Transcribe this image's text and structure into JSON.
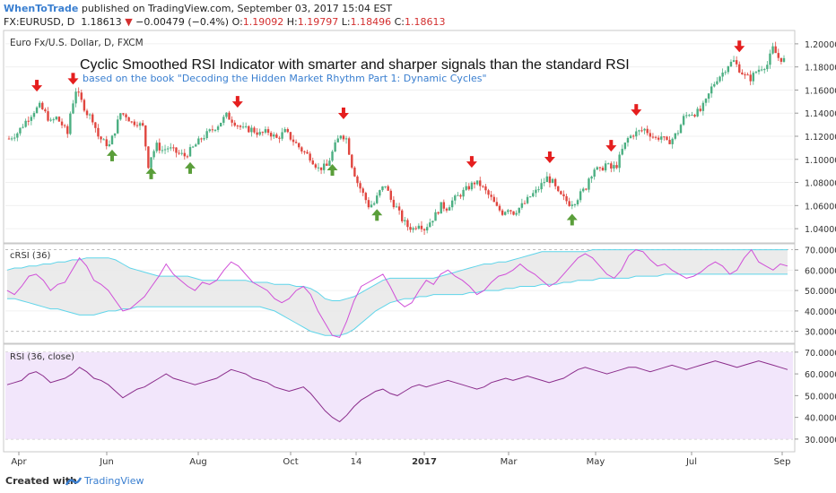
{
  "header": {
    "brand": "WhenToTrade",
    "published_text": "published on TradingView.com, September 03, 2017 15:04 EST",
    "symbol": "FX:EURUSD, D",
    "last": "1.18613",
    "change": "−0.00479 (−0.4%)",
    "o_label": "O:",
    "o_value": "1.19092",
    "h_label": "H:",
    "h_value": "1.19797",
    "l_label": "L:",
    "l_value": "1.18496",
    "c_label": "C:",
    "c_value": "1.18613",
    "down_color": "#d32f2f"
  },
  "footer": {
    "created_with": "Created with",
    "platform": "TradingView"
  },
  "chart_data": [
    {
      "type": "candlestick",
      "instrument": "Euro Fx/U.S. Dollar, D, FXCM",
      "title": "Cyclic Smoothed RSI Indicator with smarter and sharper signals than the standard RSI",
      "subtitle": "based on the book \"Decoding the Hidden Market Rhythm Part 1: Dynamic Cycles\"",
      "x_ticks": [
        "Apr",
        "Jun",
        "Aug",
        "Oct",
        "14",
        "2017",
        "Mar",
        "May",
        "Jul",
        "Sep"
      ],
      "ylim": [
        1.03,
        1.21
      ],
      "y_ticks": [
        "1.04000",
        "1.06000",
        "1.08000",
        "1.10000",
        "1.12000",
        "1.14000",
        "1.16000",
        "1.18000",
        "1.20000"
      ],
      "price_path": [
        {
          "x": 0,
          "y": 1.118
        },
        {
          "x": 3,
          "y": 1.123
        },
        {
          "x": 6,
          "y": 1.133
        },
        {
          "x": 9,
          "y": 1.142
        },
        {
          "x": 11,
          "y": 1.146
        },
        {
          "x": 13,
          "y": 1.14
        },
        {
          "x": 15,
          "y": 1.132
        },
        {
          "x": 17,
          "y": 1.136
        },
        {
          "x": 19,
          "y": 1.13
        },
        {
          "x": 21,
          "y": 1.122
        },
        {
          "x": 22,
          "y": 1.14
        },
        {
          "x": 24,
          "y": 1.16
        },
        {
          "x": 26,
          "y": 1.15
        },
        {
          "x": 28,
          "y": 1.14
        },
        {
          "x": 30,
          "y": 1.135
        },
        {
          "x": 32,
          "y": 1.12
        },
        {
          "x": 34,
          "y": 1.115
        },
        {
          "x": 36,
          "y": 1.112
        },
        {
          "x": 38,
          "y": 1.125
        },
        {
          "x": 40,
          "y": 1.14
        },
        {
          "x": 42,
          "y": 1.138
        },
        {
          "x": 44,
          "y": 1.132
        },
        {
          "x": 46,
          "y": 1.132
        },
        {
          "x": 48,
          "y": 1.128
        },
        {
          "x": 49,
          "y": 1.112
        },
        {
          "x": 50,
          "y": 1.095
        },
        {
          "x": 51,
          "y": 1.103
        },
        {
          "x": 53,
          "y": 1.112
        },
        {
          "x": 55,
          "y": 1.108
        },
        {
          "x": 57,
          "y": 1.11
        },
        {
          "x": 60,
          "y": 1.106
        },
        {
          "x": 63,
          "y": 1.103
        },
        {
          "x": 66,
          "y": 1.11
        },
        {
          "x": 69,
          "y": 1.118
        },
        {
          "x": 72,
          "y": 1.124
        },
        {
          "x": 75,
          "y": 1.13
        },
        {
          "x": 78,
          "y": 1.138
        },
        {
          "x": 81,
          "y": 1.132
        },
        {
          "x": 84,
          "y": 1.126
        },
        {
          "x": 87,
          "y": 1.126
        },
        {
          "x": 90,
          "y": 1.122
        },
        {
          "x": 93,
          "y": 1.124
        },
        {
          "x": 96,
          "y": 1.118
        },
        {
          "x": 99,
          "y": 1.124
        },
        {
          "x": 102,
          "y": 1.116
        },
        {
          "x": 105,
          "y": 1.108
        },
        {
          "x": 108,
          "y": 1.102
        },
        {
          "x": 111,
          "y": 1.092
        },
        {
          "x": 114,
          "y": 1.094
        },
        {
          "x": 117,
          "y": 1.112
        },
        {
          "x": 119,
          "y": 1.122
        },
        {
          "x": 121,
          "y": 1.118
        },
        {
          "x": 123,
          "y": 1.095
        },
        {
          "x": 125,
          "y": 1.08
        },
        {
          "x": 127,
          "y": 1.07
        },
        {
          "x": 129,
          "y": 1.06
        },
        {
          "x": 131,
          "y": 1.062
        },
        {
          "x": 133,
          "y": 1.072
        },
        {
          "x": 135,
          "y": 1.078
        },
        {
          "x": 137,
          "y": 1.065
        },
        {
          "x": 139,
          "y": 1.058
        },
        {
          "x": 141,
          "y": 1.048
        },
        {
          "x": 143,
          "y": 1.042
        },
        {
          "x": 145,
          "y": 1.04
        },
        {
          "x": 147,
          "y": 1.045
        },
        {
          "x": 149,
          "y": 1.04
        },
        {
          "x": 151,
          "y": 1.046
        },
        {
          "x": 153,
          "y": 1.052
        },
        {
          "x": 155,
          "y": 1.06
        },
        {
          "x": 157,
          "y": 1.058
        },
        {
          "x": 159,
          "y": 1.064
        },
        {
          "x": 161,
          "y": 1.068
        },
        {
          "x": 163,
          "y": 1.072
        },
        {
          "x": 165,
          "y": 1.076
        },
        {
          "x": 167,
          "y": 1.08
        },
        {
          "x": 169,
          "y": 1.078
        },
        {
          "x": 171,
          "y": 1.072
        },
        {
          "x": 173,
          "y": 1.066
        },
        {
          "x": 175,
          "y": 1.058
        },
        {
          "x": 177,
          "y": 1.054
        },
        {
          "x": 179,
          "y": 1.058
        },
        {
          "x": 181,
          "y": 1.054
        },
        {
          "x": 183,
          "y": 1.058
        },
        {
          "x": 185,
          "y": 1.062
        },
        {
          "x": 187,
          "y": 1.068
        },
        {
          "x": 189,
          "y": 1.072
        },
        {
          "x": 191,
          "y": 1.078
        },
        {
          "x": 193,
          "y": 1.084
        },
        {
          "x": 195,
          "y": 1.08
        },
        {
          "x": 197,
          "y": 1.07
        },
        {
          "x": 199,
          "y": 1.066
        },
        {
          "x": 201,
          "y": 1.062
        },
        {
          "x": 203,
          "y": 1.064
        },
        {
          "x": 205,
          "y": 1.07
        },
        {
          "x": 207,
          "y": 1.076
        },
        {
          "x": 208,
          "y": 1.084
        },
        {
          "x": 210,
          "y": 1.092
        },
        {
          "x": 212,
          "y": 1.09
        },
        {
          "x": 214,
          "y": 1.096
        },
        {
          "x": 216,
          "y": 1.092
        },
        {
          "x": 218,
          "y": 1.095
        },
        {
          "x": 220,
          "y": 1.108
        },
        {
          "x": 222,
          "y": 1.118
        },
        {
          "x": 224,
          "y": 1.122
        },
        {
          "x": 226,
          "y": 1.124
        },
        {
          "x": 228,
          "y": 1.126
        },
        {
          "x": 230,
          "y": 1.122
        },
        {
          "x": 232,
          "y": 1.118
        },
        {
          "x": 234,
          "y": 1.12
        },
        {
          "x": 236,
          "y": 1.114
        },
        {
          "x": 238,
          "y": 1.118
        },
        {
          "x": 240,
          "y": 1.124
        },
        {
          "x": 242,
          "y": 1.136
        },
        {
          "x": 244,
          "y": 1.14
        },
        {
          "x": 246,
          "y": 1.14
        },
        {
          "x": 248,
          "y": 1.142
        },
        {
          "x": 250,
          "y": 1.15
        },
        {
          "x": 252,
          "y": 1.162
        },
        {
          "x": 254,
          "y": 1.17
        },
        {
          "x": 256,
          "y": 1.175
        },
        {
          "x": 258,
          "y": 1.182
        },
        {
          "x": 260,
          "y": 1.185
        },
        {
          "x": 262,
          "y": 1.178
        },
        {
          "x": 264,
          "y": 1.172
        },
        {
          "x": 266,
          "y": 1.17
        },
        {
          "x": 268,
          "y": 1.176
        },
        {
          "x": 270,
          "y": 1.18
        },
        {
          "x": 272,
          "y": 1.182
        },
        {
          "x": 274,
          "y": 1.196
        },
        {
          "x": 276,
          "y": 1.188
        },
        {
          "x": 278,
          "y": 1.186
        }
      ],
      "markers": [
        {
          "type": "sell",
          "x": 10
        },
        {
          "type": "sell",
          "x": 23
        },
        {
          "type": "buy",
          "x": 37
        },
        {
          "type": "buy",
          "x": 51
        },
        {
          "type": "buy",
          "x": 65
        },
        {
          "type": "sell",
          "x": 82
        },
        {
          "type": "sell",
          "x": 120
        },
        {
          "type": "buy",
          "x": 116
        },
        {
          "type": "buy",
          "x": 132
        },
        {
          "type": "sell",
          "x": 166
        },
        {
          "type": "sell",
          "x": 194
        },
        {
          "type": "buy",
          "x": 202
        },
        {
          "type": "sell",
          "x": 216
        },
        {
          "type": "sell",
          "x": 225
        },
        {
          "type": "sell",
          "x": 262
        }
      ],
      "colors": {
        "up": "#4caf82",
        "down": "#e0463f",
        "sell": "#e51e1e",
        "buy": "#5a9e3a",
        "title": "#111111",
        "subtitle": "#3a7fd0"
      }
    },
    {
      "type": "line",
      "label": "cRSI (36)",
      "ylim": [
        25,
        72
      ],
      "y_ticks": [
        "30.0000",
        "40.0000",
        "50.0000",
        "60.0000",
        "70.0000"
      ],
      "series": [
        {
          "name": "cRSI",
          "values": [
            50,
            48,
            52,
            57,
            58,
            55,
            50,
            53,
            54,
            60,
            66,
            62,
            55,
            53,
            50,
            45,
            40,
            41,
            44,
            47,
            52,
            57,
            63,
            58,
            55,
            52,
            50,
            54,
            53,
            55,
            60,
            64,
            62,
            58,
            54,
            52,
            50,
            46,
            44,
            46,
            50,
            52,
            48,
            40,
            34,
            28,
            27,
            35,
            45,
            52,
            54,
            56,
            58,
            52,
            45,
            42,
            44,
            50,
            55,
            53,
            58,
            60,
            57,
            55,
            52,
            48,
            50,
            54,
            57,
            58,
            60,
            63,
            60,
            58,
            55,
            52,
            54,
            58,
            62,
            66,
            68,
            66,
            62,
            58,
            56,
            60,
            67,
            70,
            69,
            65,
            62,
            63,
            60,
            58,
            56,
            57,
            59,
            62,
            64,
            62,
            58,
            60,
            66,
            70,
            64,
            62,
            60,
            63,
            62
          ]
        },
        {
          "name": "upper band",
          "values": [
            60,
            61,
            61,
            62,
            62,
            63,
            63,
            64,
            64,
            65,
            65,
            66,
            66,
            66,
            66,
            65,
            63,
            61,
            60,
            59,
            58,
            57,
            57,
            57,
            57,
            57,
            56,
            55,
            55,
            55,
            55,
            55,
            55,
            55,
            54,
            54,
            54,
            53,
            53,
            53,
            52,
            52,
            51,
            49,
            46,
            45,
            45,
            46,
            47,
            49,
            51,
            53,
            55,
            56,
            56,
            56,
            56,
            56,
            56,
            56,
            57,
            58,
            59,
            60,
            61,
            62,
            63,
            63,
            64,
            64,
            65,
            66,
            67,
            68,
            69,
            69,
            69,
            69,
            69,
            69,
            69,
            70,
            70,
            70,
            70,
            70,
            70,
            70,
            70,
            70,
            70,
            70,
            70,
            70,
            70,
            70,
            70,
            70,
            70,
            70,
            70,
            70,
            70,
            70,
            70,
            70,
            70,
            70,
            70
          ]
        },
        {
          "name": "lower band",
          "values": [
            46,
            46,
            45,
            44,
            43,
            42,
            41,
            41,
            40,
            39,
            38,
            38,
            38,
            39,
            40,
            40,
            41,
            41,
            42,
            42,
            42,
            42,
            42,
            42,
            42,
            42,
            42,
            42,
            42,
            42,
            42,
            42,
            42,
            42,
            42,
            42,
            41,
            40,
            38,
            36,
            34,
            32,
            30,
            29,
            28,
            28,
            28,
            29,
            31,
            34,
            37,
            40,
            42,
            44,
            45,
            46,
            46,
            47,
            47,
            48,
            48,
            48,
            48,
            48,
            49,
            49,
            50,
            50,
            50,
            51,
            51,
            52,
            52,
            52,
            53,
            53,
            53,
            54,
            54,
            55,
            55,
            55,
            56,
            56,
            56,
            56,
            56,
            57,
            57,
            57,
            57,
            58,
            58,
            58,
            58,
            58,
            58,
            58,
            58,
            58,
            58,
            58,
            58,
            58,
            58,
            58,
            58,
            58,
            58
          ]
        }
      ],
      "colors": {
        "line": "#d04fd8",
        "band": "#5fd5ea",
        "fill": "#e9e9e9"
      }
    },
    {
      "type": "line",
      "label": "RSI (36, close)",
      "ylim": [
        25,
        72
      ],
      "y_ticks": [
        "30.0000",
        "40.0000",
        "50.0000",
        "60.0000",
        "70.0000"
      ],
      "series": [
        {
          "name": "RSI",
          "values": [
            55,
            56,
            57,
            60,
            61,
            59,
            56,
            57,
            58,
            60,
            63,
            61,
            58,
            57,
            55,
            52,
            49,
            51,
            53,
            54,
            56,
            58,
            60,
            58,
            57,
            56,
            55,
            56,
            57,
            58,
            60,
            62,
            61,
            60,
            58,
            57,
            56,
            54,
            53,
            52,
            53,
            54,
            51,
            47,
            43,
            40,
            38,
            41,
            45,
            48,
            50,
            52,
            53,
            51,
            50,
            52,
            54,
            55,
            54,
            55,
            56,
            57,
            56,
            55,
            54,
            53,
            54,
            56,
            57,
            58,
            57,
            58,
            59,
            58,
            57,
            56,
            57,
            58,
            60,
            62,
            63,
            62,
            61,
            60,
            61,
            62,
            63,
            63,
            62,
            61,
            62,
            63,
            64,
            63,
            62,
            63,
            64,
            65,
            66,
            65,
            64,
            63,
            64,
            65,
            66,
            65,
            64,
            63,
            62
          ]
        }
      ],
      "colors": {
        "line": "#8b2d8b",
        "fill": "#f2e6fb"
      }
    }
  ]
}
